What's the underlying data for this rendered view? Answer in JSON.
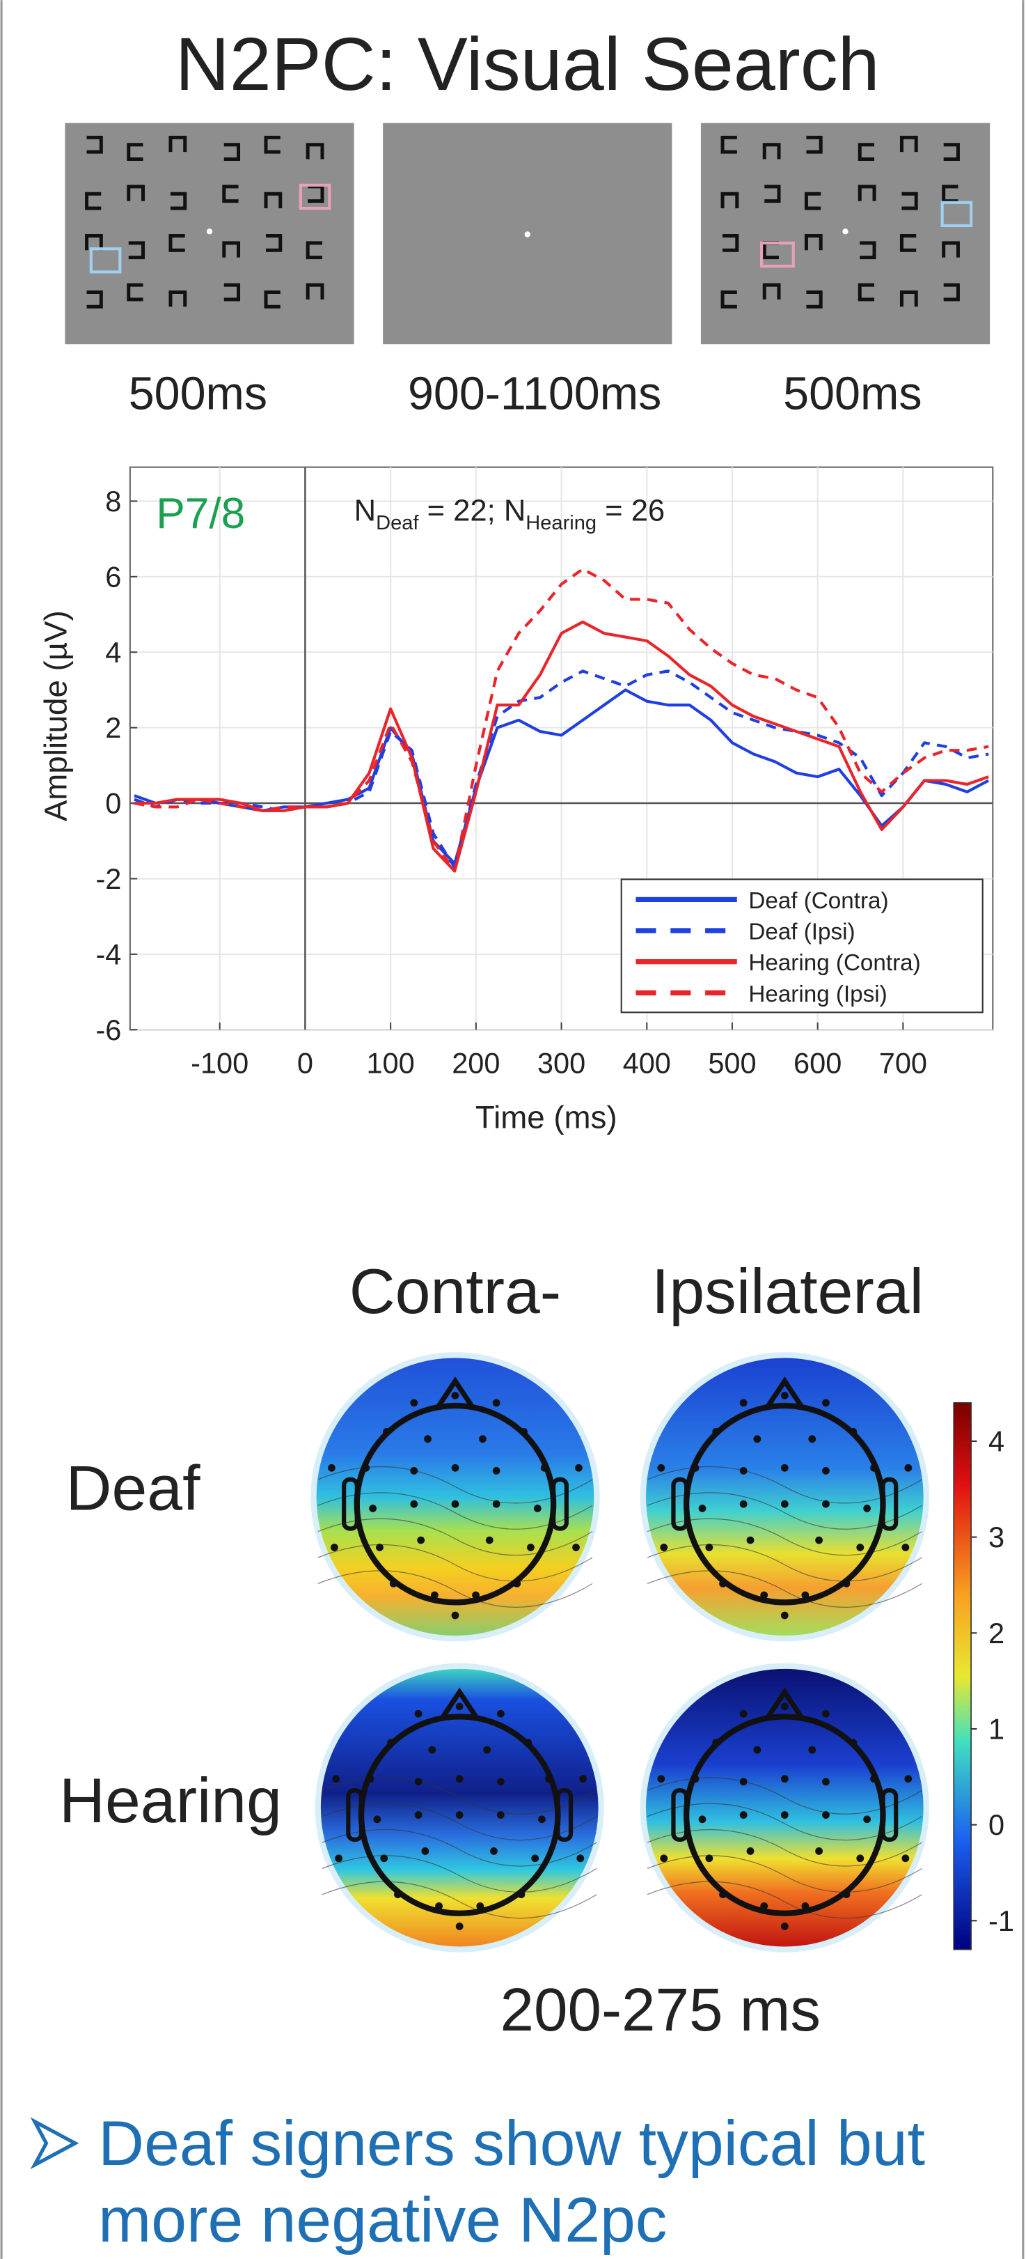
{
  "title": "N2PC: Visual Search",
  "stimuli": {
    "durations": [
      "500ms",
      "900-1100ms",
      "500ms"
    ]
  },
  "chart_data": {
    "type": "line",
    "label": "P7/8",
    "annotation": [
      "N",
      "Deaf",
      " = 22; N",
      "Hearing",
      " = 26"
    ],
    "xlabel": "Time (ms)",
    "ylabel": "Amplitude (µV)",
    "x": [
      -200,
      -175,
      -150,
      -125,
      -100,
      -75,
      -50,
      -25,
      0,
      25,
      50,
      75,
      100,
      125,
      150,
      175,
      200,
      225,
      250,
      275,
      300,
      325,
      350,
      375,
      400,
      425,
      450,
      475,
      500,
      525,
      550,
      575,
      600,
      625,
      650,
      675,
      700,
      725,
      750,
      775,
      800
    ],
    "series": [
      {
        "name": "Deaf (Contra)",
        "color": "#1f3fe0",
        "style": "solid",
        "values": [
          0.2,
          0,
          0.1,
          0.1,
          0,
          -0.1,
          -0.2,
          -0.1,
          -0.1,
          0,
          0.1,
          0.4,
          2.0,
          1.3,
          -1.0,
          -1.6,
          0.4,
          2.0,
          2.2,
          1.9,
          1.8,
          2.2,
          2.6,
          3.0,
          2.7,
          2.6,
          2.6,
          2.2,
          1.6,
          1.3,
          1.1,
          0.8,
          0.7,
          0.9,
          0.2,
          -0.6,
          -0.1,
          0.6,
          0.5,
          0.3,
          0.6
        ]
      },
      {
        "name": "Deaf (Ipsi)",
        "color": "#1f3fe0",
        "style": "dashed",
        "values": [
          0.1,
          -0.1,
          0.1,
          0,
          0,
          0,
          -0.1,
          -0.2,
          -0.1,
          -0.1,
          0,
          0.3,
          1.9,
          1.4,
          -0.8,
          -1.7,
          0.5,
          2.3,
          2.7,
          2.8,
          3.2,
          3.5,
          3.3,
          3.1,
          3.4,
          3.5,
          3.2,
          2.8,
          2.4,
          2.2,
          2.0,
          1.9,
          1.8,
          1.6,
          1.2,
          0.2,
          0.8,
          1.6,
          1.5,
          1.2,
          1.3
        ]
      },
      {
        "name": "Hearing (Contra)",
        "color": "#e8252a",
        "style": "solid",
        "values": [
          0,
          0,
          0.1,
          0.1,
          0.1,
          0,
          -0.2,
          -0.2,
          -0.1,
          -0.1,
          0,
          0.8,
          2.5,
          1.2,
          -1.2,
          -1.8,
          0.3,
          2.6,
          2.6,
          3.4,
          4.5,
          4.8,
          4.5,
          4.4,
          4.3,
          3.9,
          3.4,
          3.1,
          2.6,
          2.3,
          2.1,
          1.9,
          1.7,
          1.5,
          0.3,
          -0.7,
          -0.1,
          0.6,
          0.6,
          0.5,
          0.7
        ]
      },
      {
        "name": "Hearing (Ipsi)",
        "color": "#e8252a",
        "style": "dashed",
        "values": [
          0,
          -0.1,
          -0.1,
          0.1,
          0,
          -0.1,
          -0.2,
          -0.1,
          -0.1,
          -0.1,
          0,
          0.6,
          2.1,
          1.1,
          -1.0,
          -1.8,
          1.0,
          3.5,
          4.5,
          5.1,
          5.8,
          6.2,
          5.9,
          5.4,
          5.4,
          5.3,
          4.6,
          4.1,
          3.7,
          3.4,
          3.3,
          3.0,
          2.8,
          2.0,
          0.8,
          0.3,
          0.8,
          1.2,
          1.4,
          1.4,
          1.5
        ]
      }
    ],
    "xlim": [
      -205,
      805
    ],
    "ylim": [
      -6,
      8.9
    ],
    "xticks": [
      -100,
      0,
      100,
      200,
      300,
      400,
      500,
      600,
      700
    ],
    "yticks": [
      -6,
      -4,
      -2,
      0,
      2,
      4,
      6,
      8
    ],
    "grid": true,
    "legend": "lower right"
  },
  "topography": {
    "columns": [
      "Contra-",
      "Ipsilateral"
    ],
    "rows": [
      "Deaf",
      "Hearing"
    ],
    "window": "200-275 ms",
    "colorbar": {
      "lim": [
        -1.3,
        4.4
      ],
      "ticks": [
        4,
        3,
        2,
        1,
        0,
        -1
      ]
    }
  },
  "conclusion": {
    "lines": [
      "Deaf signers show typical but",
      "more negative N2pc"
    ]
  }
}
